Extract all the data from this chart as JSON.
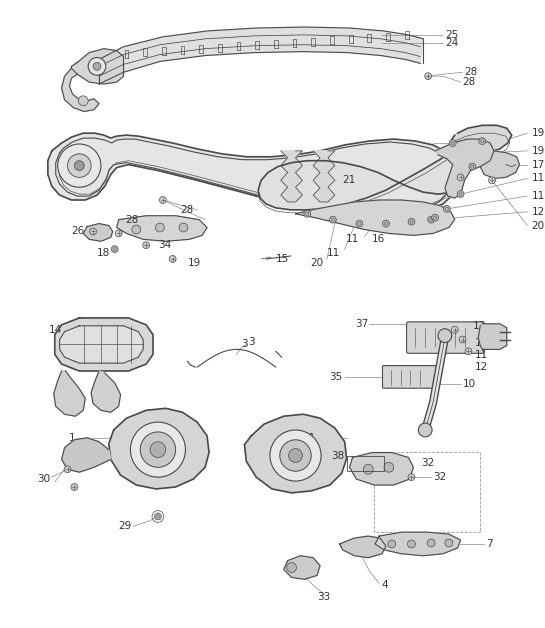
{
  "bg_color": "#ffffff",
  "line_color": "#4a4a4a",
  "label_color": "#333333",
  "fig_width": 5.45,
  "fig_height": 6.28,
  "dpi": 100
}
